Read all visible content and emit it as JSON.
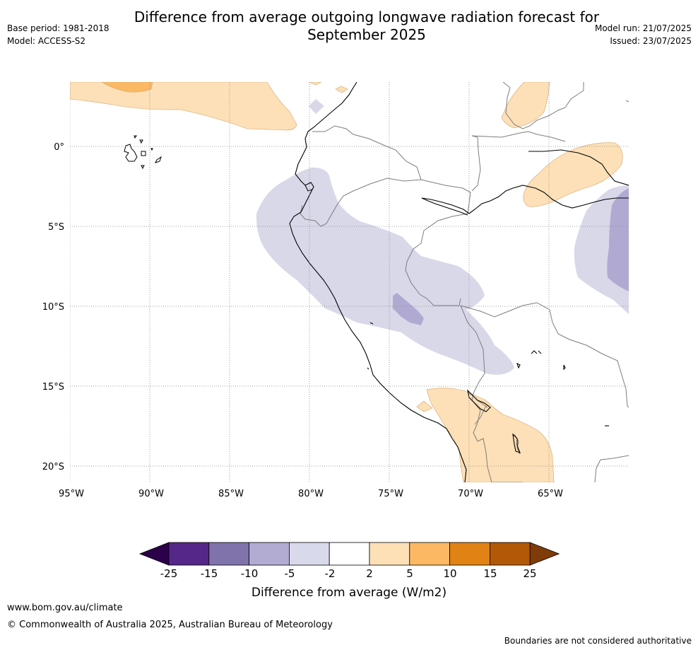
{
  "title": {
    "line1": "Difference from average outgoing longwave radiation forecast for",
    "line2": "September 2025"
  },
  "meta_left": {
    "base_period": "Base period: 1981-2018",
    "model": "Model: ACCESS-S2"
  },
  "meta_right": {
    "model_run": "Model run: 21/07/2025",
    "issued": "Issued: 23/07/2025"
  },
  "map": {
    "region": "Western South America (Ecuador, Peru, N. Chile, W. Brazil, Bolivia)",
    "lon_range": [
      -95,
      -60
    ],
    "lat_range": [
      -21,
      4
    ],
    "x_ticks": [
      "95°W",
      "90°W",
      "85°W",
      "80°W",
      "75°W",
      "70°W",
      "65°W"
    ],
    "y_ticks": [
      "0°",
      "5°S",
      "10°S",
      "15°S",
      "20°S"
    ],
    "gridlines": "dotted",
    "colors": {
      "neg_2_5": "#d8d8e9",
      "neg_5_10": "#b0aad3",
      "pos_2_5": "#fde0b7",
      "pos_5_10": "#fbb963"
    }
  },
  "colorbar": {
    "title": "Difference from average (W/m2)",
    "ticks": [
      "-25",
      "-15",
      "-10",
      "-5",
      "-2",
      "2",
      "5",
      "10",
      "15",
      "25"
    ],
    "colors": [
      "#2d004b",
      "#542788",
      "#8073ac",
      "#b2abd2",
      "#d8daeb",
      "#ffffff",
      "#fee0b6",
      "#fdb863",
      "#e08214",
      "#b35806",
      "#7f3b08"
    ]
  },
  "footer": {
    "url": "www.bom.gov.au/climate",
    "copyright": "© Commonwealth of Australia 2025, Australian Bureau of Meteorology",
    "note": "Boundaries are not considered authoritative"
  }
}
